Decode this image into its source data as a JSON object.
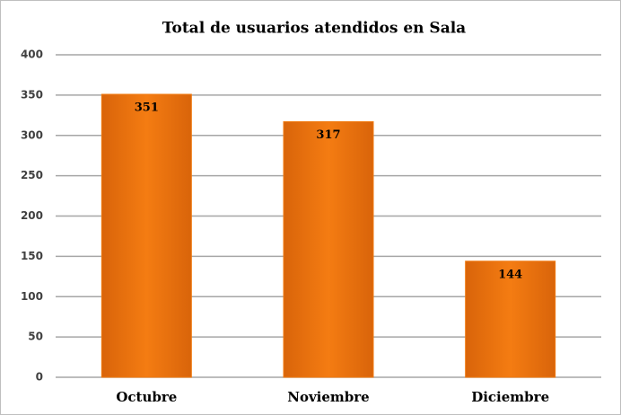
{
  "chart_data": {
    "type": "bar",
    "title": "Total de usuarios atendidos en Sala",
    "categories": [
      "Octubre",
      "Noviembre",
      "Diciembre"
    ],
    "values": [
      351,
      317,
      144
    ],
    "color": "#f07a10",
    "ylim": [
      0,
      400
    ],
    "yticks": [
      0,
      50,
      100,
      150,
      200,
      250,
      300,
      350,
      400
    ],
    "grid": true
  }
}
